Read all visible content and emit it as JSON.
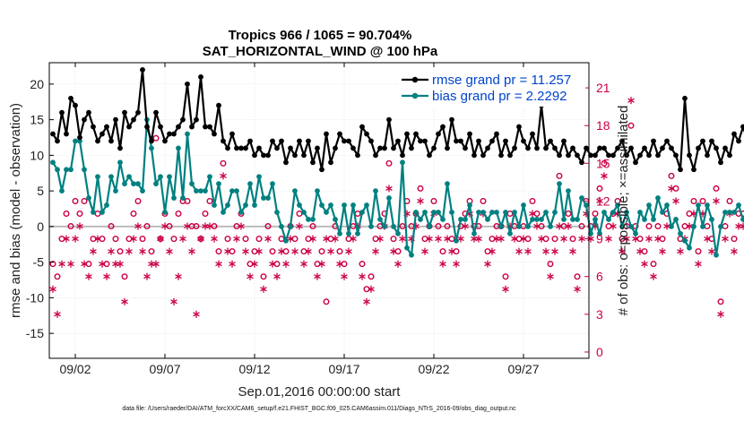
{
  "colors": {
    "rmse": "#000000",
    "bias": "#008080",
    "obs": "#cc0044",
    "legend_text": "#0044cc",
    "zero_line": "#bbbbbb",
    "axis": "#000000"
  },
  "chart_data": {
    "type": "line",
    "title": "Tropics 966 / 1065 = 90.704%",
    "subtitle": "SAT_HORIZONTAL_WIND @ 100 hPa",
    "xlabel": "Sep.01,2016 00:00:00 start",
    "ylabel": "rmse and bias (model - observation)",
    "y2label": "# of obs: o=possible; ×=assimilated",
    "footer": "data file: /Users/raeder/DAI/ATM_forcXX/CAM6_setup/f.e21.FHIST_BGC.f09_025.CAM6assim.011/Diags_NTrS_2016-09/obs_diag_output.nc",
    "xlim": [
      0.55,
      30.65
    ],
    "ylim": [
      -18.5,
      23
    ],
    "y2lim": [
      -0.5,
      23
    ],
    "x_unit": "days since Sep.01,2016",
    "x_ticks": [
      {
        "value": 2,
        "label": "09/02"
      },
      {
        "value": 7,
        "label": "09/07"
      },
      {
        "value": 12,
        "label": "09/12"
      },
      {
        "value": 17,
        "label": "09/17"
      },
      {
        "value": 22,
        "label": "09/22"
      },
      {
        "value": 27,
        "label": "09/27"
      }
    ],
    "y_ticks": [
      {
        "value": 20,
        "label": "20"
      },
      {
        "value": 15,
        "label": "15"
      },
      {
        "value": 10,
        "label": "10"
      },
      {
        "value": 5,
        "label": "5"
      },
      {
        "value": 0,
        "label": "0"
      },
      {
        "value": -5,
        "label": "-5"
      },
      {
        "value": -10,
        "label": "-10"
      },
      {
        "value": -15,
        "label": "-15"
      }
    ],
    "y2_ticks": [
      {
        "value": 21,
        "label": "21"
      },
      {
        "value": 18,
        "label": "18"
      },
      {
        "value": 15,
        "label": "15"
      },
      {
        "value": 12,
        "label": "12"
      },
      {
        "value": 9,
        "label": "9"
      },
      {
        "value": 6,
        "label": "6"
      },
      {
        "value": 3,
        "label": "3"
      },
      {
        "value": 0,
        "label": "0"
      }
    ],
    "x_start": 0.75,
    "x_step": 0.25,
    "legend": {
      "position": "top-right",
      "entries": [
        {
          "series": "rmse",
          "label": "rmse grand pr = 11.257"
        },
        {
          "series": "bias",
          "label": "bias grand pr = 2.2292"
        }
      ]
    },
    "series": [
      {
        "name": "rmse",
        "values": [
          13,
          12,
          16,
          13,
          18,
          17,
          12.5,
          15,
          16,
          14,
          12,
          13,
          14,
          12,
          15,
          11,
          16,
          14,
          15,
          16,
          22,
          14,
          12,
          16,
          14,
          12,
          13,
          13,
          14,
          15,
          20,
          14,
          15,
          21,
          14,
          14,
          13,
          17,
          12,
          11,
          13,
          11,
          11,
          11,
          12,
          10,
          11,
          10,
          10,
          12,
          11,
          12,
          9,
          11,
          10,
          12,
          10,
          12,
          9,
          11,
          8,
          13,
          9,
          11,
          13,
          12,
          12,
          11,
          10,
          14,
          13,
          12,
          10,
          11,
          11,
          15,
          11,
          12,
          10,
          13,
          11,
          13,
          12,
          12,
          10,
          11,
          13,
          14,
          11,
          15,
          12,
          12,
          11,
          13,
          10,
          12,
          10,
          11,
          12,
          13,
          10,
          12,
          10,
          11,
          14,
          12,
          11,
          13,
          11,
          17,
          11,
          12,
          11,
          10,
          12,
          10,
          11,
          10,
          9,
          11,
          10,
          10,
          11,
          11,
          10,
          10,
          11,
          12,
          10,
          11,
          9,
          10,
          11,
          10,
          12,
          10,
          11,
          12,
          11,
          10,
          8,
          18,
          10,
          8,
          11,
          12,
          10,
          12,
          11,
          9,
          11,
          10,
          13,
          12,
          14,
          12,
          9,
          11,
          9,
          10,
          14,
          15,
          12,
          18,
          14,
          11,
          13,
          15,
          16,
          13,
          15,
          10,
          12,
          13,
          10,
          12,
          14,
          13,
          15,
          15,
          14,
          15,
          8,
          13,
          12.5,
          12,
          12
        ]
      },
      {
        "name": "bias",
        "values": [
          9,
          8,
          5,
          8,
          8,
          12,
          12,
          8,
          4,
          2,
          7,
          2,
          3,
          7,
          5,
          9,
          6,
          7,
          6,
          6,
          5,
          15,
          11,
          6,
          7,
          2,
          7,
          4,
          11,
          4,
          13,
          6,
          5,
          5,
          5,
          7,
          3,
          6,
          2,
          3,
          5,
          5,
          2,
          3,
          6,
          3,
          7,
          4,
          4,
          6,
          2,
          0,
          -2,
          0,
          5,
          3,
          2,
          1,
          1,
          5,
          3,
          2,
          3,
          1,
          -1,
          3,
          -1,
          3,
          -1,
          2,
          3,
          0,
          5,
          1,
          0,
          4,
          0,
          -1,
          9,
          -3,
          -4,
          2,
          1,
          2,
          0,
          2,
          2,
          1,
          6,
          2,
          -2,
          1,
          1,
          3,
          -1,
          2,
          2,
          1,
          2,
          2,
          0,
          2,
          -1,
          2,
          0,
          3,
          0,
          1,
          1,
          1,
          2,
          0,
          2,
          6,
          1,
          5,
          1,
          1,
          4,
          3,
          -1,
          1,
          -1,
          2,
          1,
          2,
          3,
          0,
          2,
          0,
          -1,
          2,
          1,
          3,
          1,
          4,
          2,
          3,
          0,
          1,
          -1,
          -2,
          -3,
          0,
          3,
          0,
          3,
          1,
          -4,
          0,
          2,
          2,
          2,
          3,
          1,
          0,
          2,
          -2,
          3,
          0,
          -3,
          2,
          -13,
          -14,
          0,
          -1,
          4,
          0,
          5,
          1,
          4,
          5,
          7,
          6,
          8,
          8,
          2,
          1,
          0,
          2,
          0,
          0,
          5,
          7,
          1,
          2,
          -3
        ]
      }
    ],
    "obs_points": {
      "description": "count of observations per time step, plotted on right axis",
      "possible": [
        7,
        6,
        9,
        11,
        10,
        12,
        11,
        12,
        7,
        9,
        11,
        9,
        7,
        10,
        9,
        8,
        6,
        9,
        11,
        12,
        9,
        10,
        8,
        17,
        9,
        11,
        10,
        9,
        11,
        12,
        12,
        10,
        10,
        9,
        11,
        12,
        10,
        8,
        15,
        9,
        8,
        10,
        11,
        9,
        7,
        8,
        9,
        6,
        10,
        8,
        7,
        9,
        8,
        10,
        9,
        11,
        8,
        9,
        10,
        7,
        8,
        4,
        9,
        10,
        8,
        7,
        9,
        10,
        11,
        7,
        5,
        6,
        9,
        10,
        11,
        15,
        9,
        8,
        10,
        12,
        10,
        11,
        13,
        9,
        10,
        12,
        10,
        8,
        10,
        9,
        8,
        10,
        11,
        12,
        10,
        10,
        12,
        8,
        9,
        10,
        10,
        6,
        11,
        10,
        9,
        10,
        9,
        12,
        11,
        10,
        9,
        7,
        9,
        14,
        10,
        11,
        9,
        6,
        10,
        12,
        10,
        11,
        13,
        15,
        10,
        11,
        12,
        9,
        10,
        18,
        10,
        9,
        8,
        10,
        7,
        10,
        9,
        11,
        14,
        13,
        9,
        10,
        11,
        12,
        8,
        12,
        10,
        9,
        13,
        4,
        10,
        12,
        9,
        11,
        11,
        9,
        11,
        10,
        14,
        12,
        9,
        10,
        12,
        11,
        10,
        9,
        13,
        12,
        11,
        10,
        9,
        10,
        12,
        9,
        13,
        11,
        10,
        9,
        10,
        11,
        13,
        9,
        10,
        12,
        8,
        10,
        9,
        11
      ],
      "assimilated": [
        5,
        3,
        7,
        9,
        7,
        9,
        10,
        7,
        6,
        8,
        9,
        7,
        6,
        8,
        7,
        7,
        4,
        8,
        9,
        10,
        8,
        6,
        7,
        7,
        9,
        10,
        8,
        4,
        6,
        9,
        10,
        8,
        3,
        9,
        10,
        10,
        9,
        7,
        14,
        8,
        7,
        9,
        10,
        8,
        6,
        7,
        8,
        5,
        9,
        7,
        6,
        8,
        7,
        9,
        8,
        10,
        7,
        8,
        9,
        6,
        7,
        9,
        8,
        9,
        7,
        6,
        8,
        9,
        10,
        6,
        4,
        5,
        8,
        9,
        10,
        13,
        8,
        7,
        9,
        11,
        9,
        10,
        12,
        8,
        9,
        11,
        9,
        7,
        9,
        8,
        7,
        9,
        10,
        11,
        9,
        9,
        11,
        7,
        8,
        9,
        9,
        5,
        10,
        9,
        8,
        9,
        8,
        11,
        10,
        9,
        8,
        6,
        8,
        10,
        9,
        10,
        8,
        5,
        9,
        11,
        9,
        10,
        12,
        14,
        9,
        10,
        11,
        8,
        9,
        20,
        9,
        8,
        7,
        9,
        6,
        9,
        8,
        10,
        13,
        12,
        8,
        9,
        10,
        11,
        7,
        11,
        9,
        8,
        12,
        3,
        9,
        11,
        8,
        10,
        10,
        8,
        10,
        9,
        13,
        11,
        8,
        9,
        11,
        10,
        9,
        8,
        12,
        11,
        10,
        9,
        8,
        9,
        11,
        8,
        12,
        10,
        9,
        8,
        9,
        10,
        12,
        8,
        3,
        11,
        7,
        9,
        8,
        10
      ]
    }
  }
}
